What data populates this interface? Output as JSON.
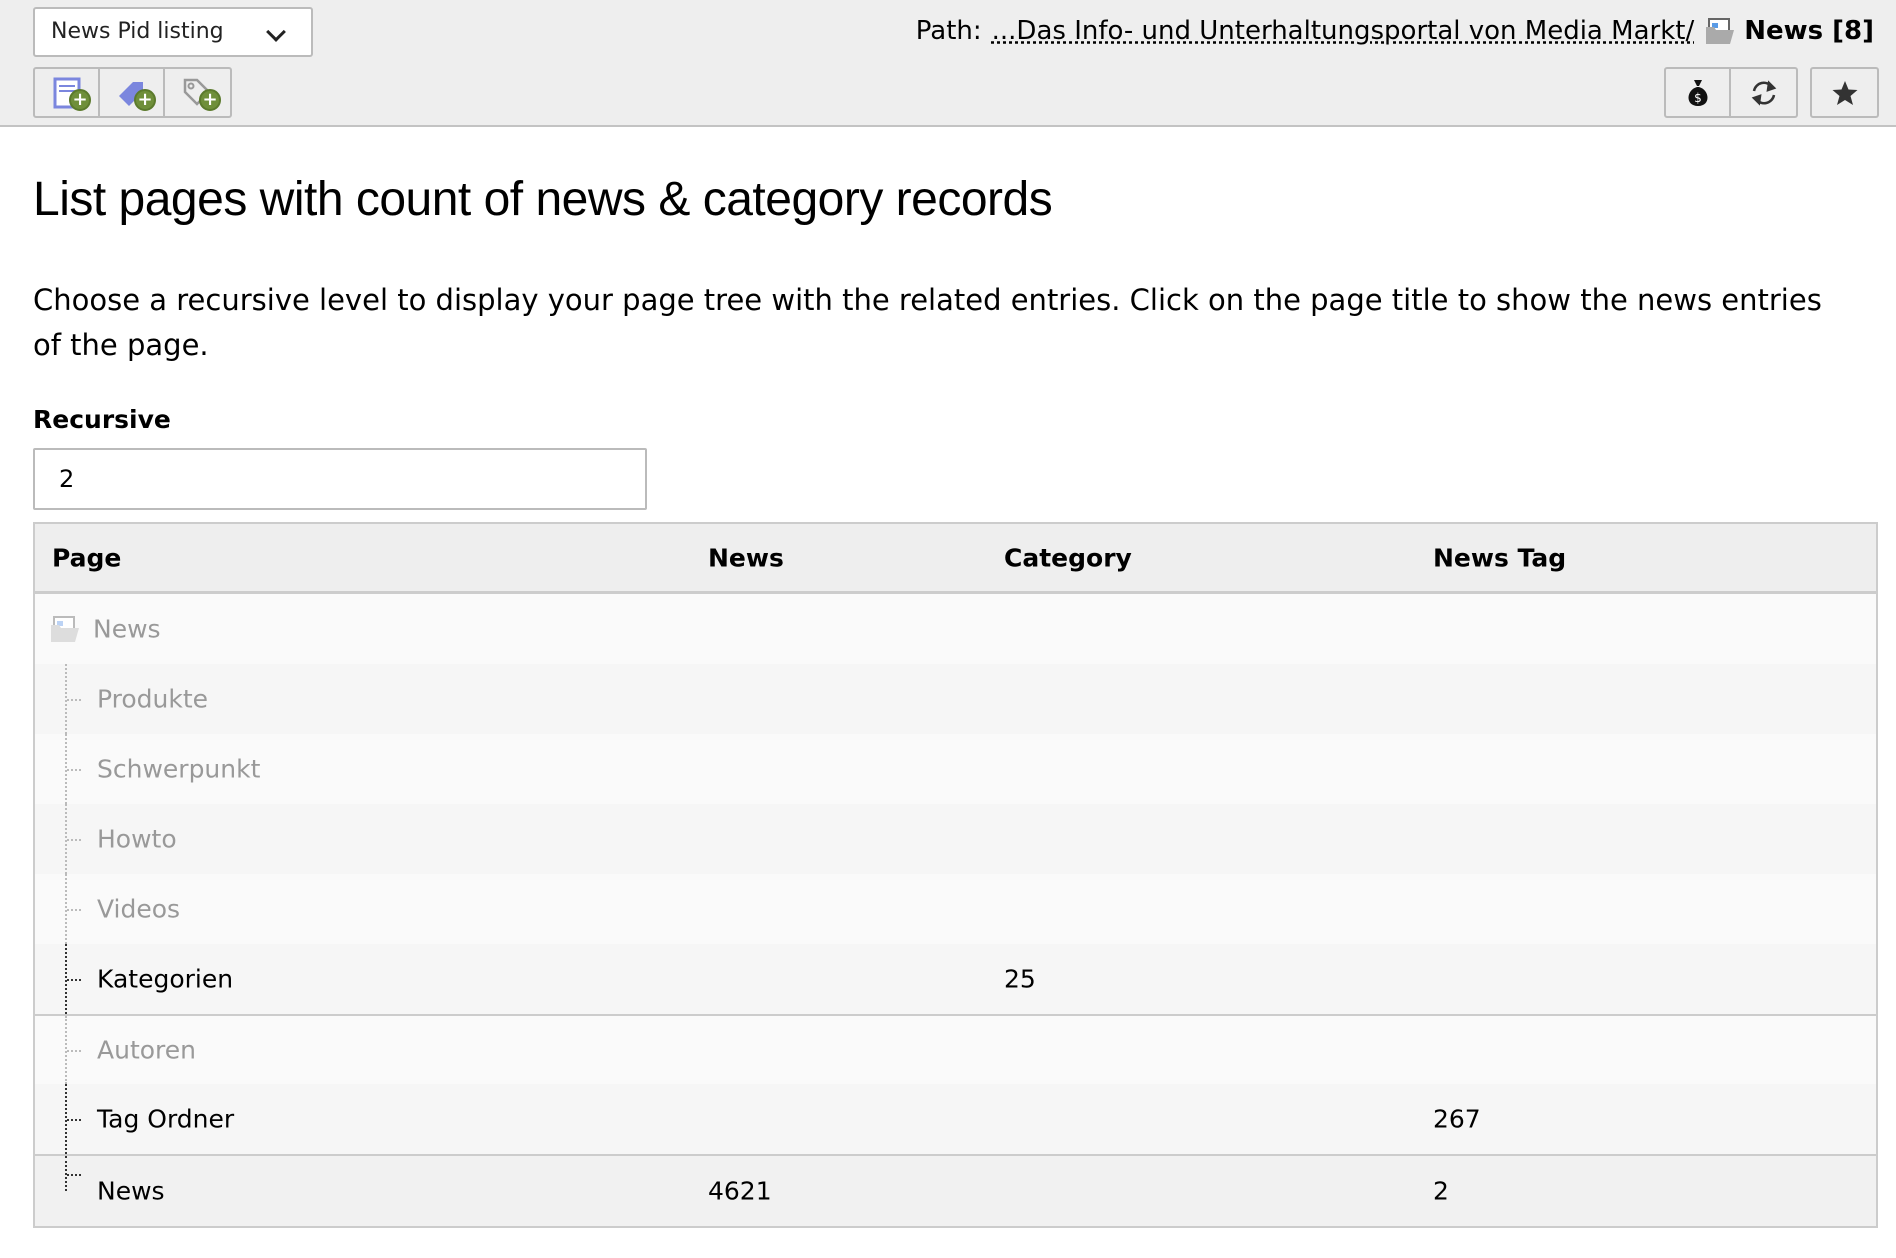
{
  "toolbar": {
    "module_select": "News Pid listing",
    "left_buttons": [
      {
        "icon": "new-news-record-icon"
      },
      {
        "icon": "new-category-icon"
      },
      {
        "icon": "new-tag-icon"
      }
    ],
    "right_buttons": [
      {
        "icon": "money-bag-icon"
      },
      {
        "icon": "refresh-icon"
      }
    ],
    "bookmark": {
      "icon": "star-icon"
    },
    "path_label": "Path:",
    "path_link": "...Das Info- und Unterhaltungsportal von Media Markt/",
    "path_current": "News [8]"
  },
  "main": {
    "title": "List pages with count of news & category records",
    "description": "Choose a recursive level to display your page tree with the related entries. Click on the page title to show the news entries of the page.",
    "recursive_label": "Recursive",
    "recursive_value": "2",
    "table": {
      "headers": [
        "Page",
        "News",
        "Category",
        "News Tag"
      ],
      "rows": [
        {
          "page": "News",
          "news": "",
          "category": "",
          "tag": "",
          "muted": true
        },
        {
          "page": "Produkte",
          "news": "",
          "category": "",
          "tag": "",
          "muted": true
        },
        {
          "page": "Schwerpunkt",
          "news": "",
          "category": "",
          "tag": "",
          "muted": true
        },
        {
          "page": "Howto",
          "news": "",
          "category": "",
          "tag": "",
          "muted": true
        },
        {
          "page": "Videos",
          "news": "",
          "category": "",
          "tag": "",
          "muted": true
        },
        {
          "page": "Kategorien",
          "news": "",
          "category": "25",
          "tag": "",
          "muted": false
        },
        {
          "page": "Autoren",
          "news": "",
          "category": "",
          "tag": "",
          "muted": true
        },
        {
          "page": "Tag Ordner",
          "news": "",
          "category": "",
          "tag": "267",
          "muted": false
        },
        {
          "page": "News",
          "news": "4621",
          "category": "",
          "tag": "2",
          "muted": false
        }
      ]
    }
  }
}
